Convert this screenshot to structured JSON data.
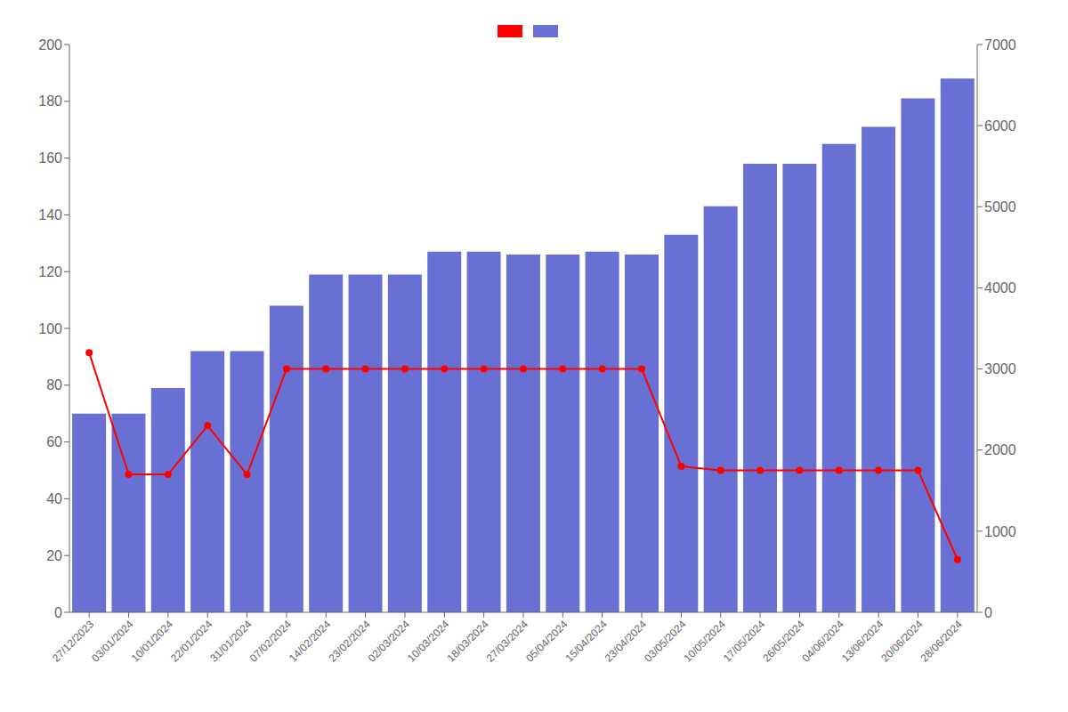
{
  "chart_data": {
    "type": "bar",
    "categories": [
      "27/12/2023",
      "03/01/2024",
      "10/01/2024",
      "22/01/2024",
      "31/01/2024",
      "07/02/2024",
      "14/02/2024",
      "23/02/2024",
      "02/03/2024",
      "10/03/2024",
      "18/03/2024",
      "27/03/2024",
      "05/04/2024",
      "15/04/2024",
      "23/04/2024",
      "03/05/2024",
      "10/05/2024",
      "17/05/2024",
      "26/05/2024",
      "04/06/2024",
      "13/06/2024",
      "20/06/2024",
      "28/06/2024"
    ],
    "series": [
      {
        "type": "bar",
        "color": "#6870d4",
        "values": [
          70,
          70,
          79,
          92,
          92,
          108,
          119,
          119,
          119,
          127,
          127,
          126,
          126,
          127,
          126,
          133,
          143,
          158,
          158,
          165,
          171,
          181,
          188
        ]
      },
      {
        "type": "line",
        "color": "#ff0000",
        "marker": "circle",
        "line_style": "solid",
        "axis": "y2",
        "values": [
          3200,
          1700,
          1700,
          2300,
          1700,
          3000,
          3000,
          3000,
          3000,
          3000,
          3000,
          3000,
          3000,
          3000,
          3000,
          1800,
          1750,
          1750,
          1750,
          1750,
          1750,
          1750,
          650
        ]
      }
    ],
    "ylim": [
      0,
      200
    ],
    "yticks": [
      0,
      20,
      40,
      60,
      80,
      100,
      120,
      140,
      160,
      180,
      200
    ],
    "y2lim": [
      0,
      7000
    ],
    "y2ticks": [
      0,
      1000,
      2000,
      3000,
      4000,
      5000,
      6000,
      7000
    ],
    "grid": false,
    "legend": "top"
  }
}
